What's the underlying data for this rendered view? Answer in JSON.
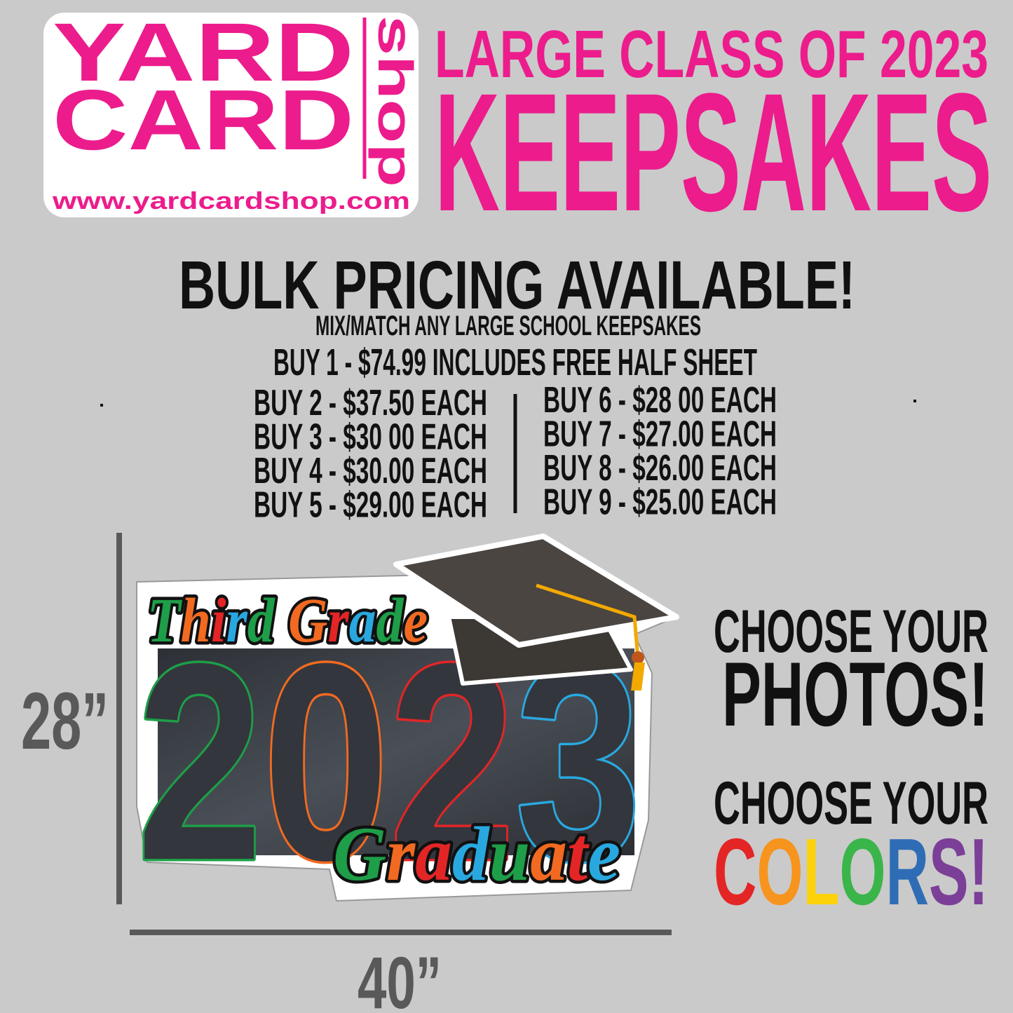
{
  "logo": {
    "line1": "YARD",
    "line2": "CARD",
    "side": "shop",
    "url": "www.yardcardshop.com"
  },
  "header": {
    "title_top": "LARGE CLASS OF 2023",
    "title_main": "KEEPSAKES"
  },
  "pricing": {
    "headline": "BULK PRICING AVAILABLE!",
    "note": "MIX/MATCH ANY LARGE SCHOOL KEEPSAKES",
    "buy1": "BUY 1 - $74.99 INCLUDES FREE HALF SHEET",
    "left": [
      "BUY 2 - $37.50 EACH",
      "BUY 3 - $30 00 EACH",
      "BUY 4 - $30.00 EACH",
      "BUY 5 - $29.00 EACH"
    ],
    "right": [
      "BUY 6 - $28 00 EACH",
      "BUY 7 - $27.00 EACH",
      "BUY 8 - $26.00 EACH",
      "BUY 9 - $25.00 EACH"
    ]
  },
  "graphic": {
    "top_text": "Third Grade",
    "year": "2023",
    "bottom_text": "Graduate",
    "height": "28”",
    "width": "40”",
    "year_colors": [
      "#1e9e48",
      "#f26a21",
      "#e32526",
      "#29a8e0"
    ]
  },
  "callouts": {
    "photos_lead": "CHOOSE YOUR",
    "photos": "PHOTOS!",
    "colors_lead": "CHOOSE YOUR",
    "colors": "COLORS!",
    "letter_colors": [
      "#e32526",
      "#f7941d",
      "#fdd20b",
      "#3ab54a",
      "#2e6db5",
      "#7b3f98",
      "#7b3f98"
    ]
  }
}
